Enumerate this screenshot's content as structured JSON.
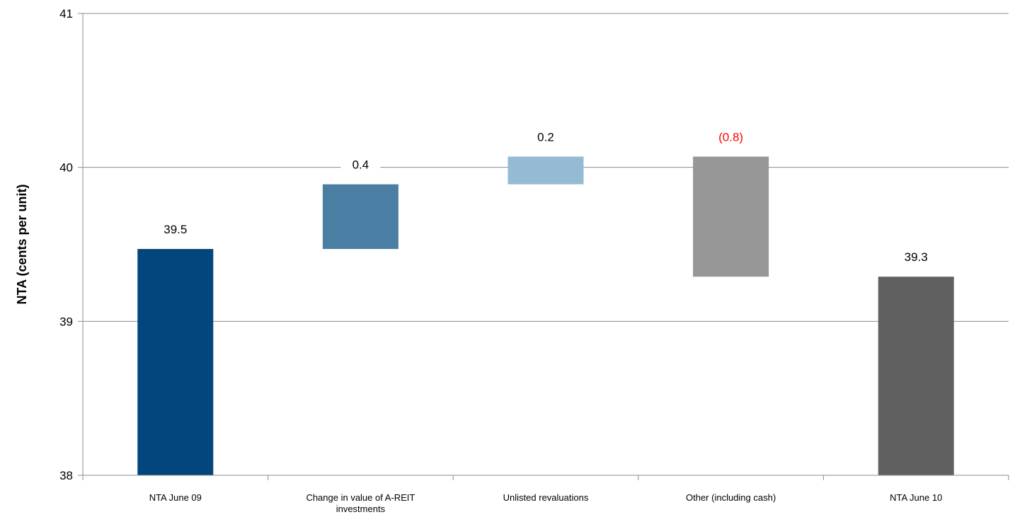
{
  "chart_data": {
    "type": "bar",
    "subtype": "waterfall",
    "title": "",
    "xlabel": "",
    "ylabel": "NTA (cents per unit)",
    "ylim": [
      38,
      41
    ],
    "yticks": [
      "38",
      "39",
      "40",
      "41"
    ],
    "grid": true,
    "legend": "none",
    "categories": [
      "NTA June 09",
      "Change in value of A-REIT investments",
      "Unlisted revaluations",
      "Other (including cash)",
      "NTA June 10"
    ],
    "bars": [
      {
        "category": "NTA June 09",
        "start": 38,
        "end": 39.47,
        "label": "39.5",
        "color": "#03457D",
        "label_color": "#000000"
      },
      {
        "category": "Change in value of A-REIT investments",
        "start": 39.47,
        "end": 39.89,
        "label": "0.4",
        "color": "#4A7EA2",
        "label_color": "#000000"
      },
      {
        "category": "Unlisted revaluations",
        "start": 39.89,
        "end": 40.07,
        "label": "0.2",
        "color": "#94BBD3",
        "label_color": "#000000"
      },
      {
        "category": "Other (including cash)",
        "start": 40.07,
        "end": 39.29,
        "label": "(0.8)",
        "color": "#979797",
        "label_color": "#FF0000"
      },
      {
        "category": "NTA June 10",
        "start": 38,
        "end": 39.29,
        "label": "39.3",
        "color": "#606060",
        "label_color": "#000000"
      }
    ]
  }
}
